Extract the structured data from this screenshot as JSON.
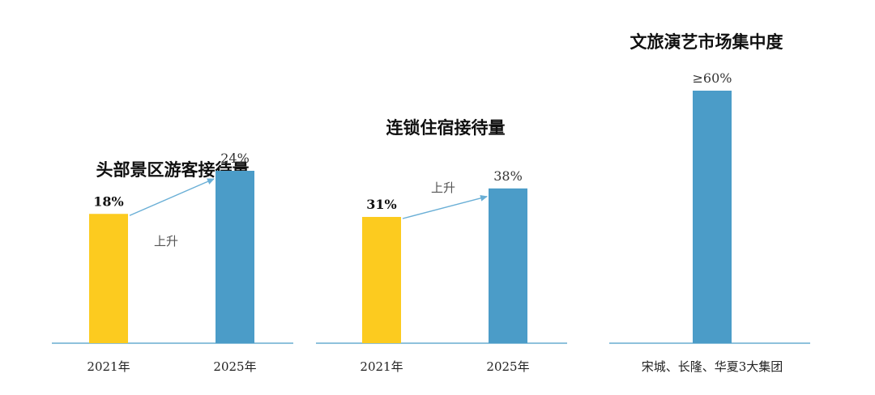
{
  "colors": {
    "yellow": "#FCCB1F",
    "blue": "#4B9CC8",
    "axis": "#4B9CC8",
    "arrow": "#6AAFD6"
  },
  "chart_data": [
    {
      "type": "bar",
      "title": "头部景区游客接待量",
      "categories": [
        "2021年",
        "2025年"
      ],
      "values": [
        18,
        24
      ],
      "value_labels": [
        "18%",
        "24%"
      ],
      "unit": "%",
      "annotation": "上升",
      "ylim": [
        0,
        40
      ]
    },
    {
      "type": "bar",
      "title": "连锁住宿接待量",
      "categories": [
        "2021年",
        "2025年"
      ],
      "values": [
        31,
        38
      ],
      "value_labels": [
        "31%",
        "38%"
      ],
      "unit": "%",
      "annotation": "上升",
      "ylim": [
        0,
        40
      ]
    },
    {
      "type": "bar",
      "title": "文旅演艺市场集中度",
      "categories": [
        "宋城、长隆、华夏3大集团"
      ],
      "values": [
        60
      ],
      "value_labels": [
        "≥60%"
      ],
      "unit": "%",
      "ylim": [
        0,
        62
      ]
    }
  ]
}
